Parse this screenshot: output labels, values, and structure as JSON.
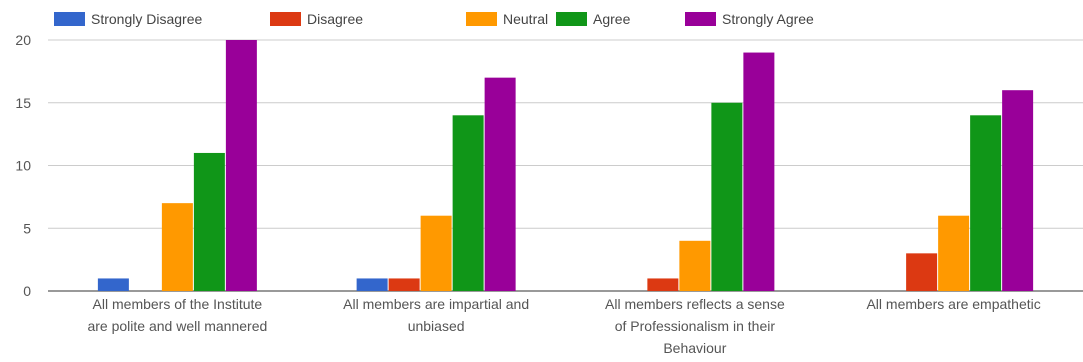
{
  "chart_data": {
    "type": "bar",
    "categories": [
      [
        "All members of the Institute",
        "are polite and well mannered"
      ],
      [
        "All members are impartial and",
        "unbiased"
      ],
      [
        "All members reflects a sense",
        "of Professionalism in their",
        "Behaviour"
      ],
      [
        "All members are empathetic"
      ]
    ],
    "series": [
      {
        "name": "Strongly Disagree",
        "color": "#3366cc",
        "values": [
          1,
          1,
          0,
          0
        ]
      },
      {
        "name": "Disagree",
        "color": "#dc3912",
        "values": [
          0,
          1,
          1,
          3
        ]
      },
      {
        "name": "Neutral",
        "color": "#ff9900",
        "values": [
          7,
          6,
          4,
          6
        ]
      },
      {
        "name": "Agree",
        "color": "#109618",
        "values": [
          11,
          14,
          15,
          14
        ]
      },
      {
        "name": "Strongly Agree",
        "color": "#990099",
        "values": [
          20,
          17,
          19,
          16
        ]
      }
    ],
    "yticks": [
      "0",
      "5",
      "10",
      "15",
      "20"
    ],
    "ylim": [
      0,
      20
    ],
    "grid": true,
    "legend_position": "top"
  }
}
